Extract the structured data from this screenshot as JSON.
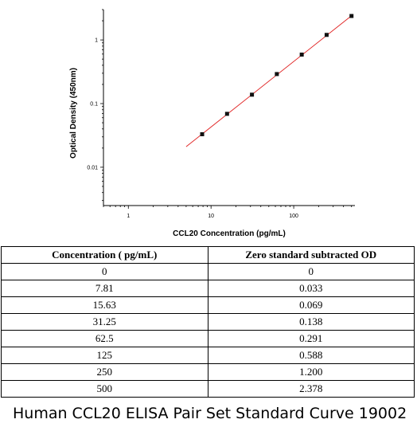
{
  "chart_data": {
    "type": "scatter",
    "xlabel": "CCL20 Concentration (pg/mL)",
    "ylabel": "Optical Density (450nm)",
    "xscale": "log",
    "yscale": "log",
    "xlim": [
      0.5,
      550
    ],
    "ylim": [
      0.0025,
      3
    ],
    "xticks": [
      {
        "value": 1,
        "label": "1"
      },
      {
        "value": 10,
        "label": "10"
      },
      {
        "value": 100,
        "label": "100"
      }
    ],
    "yticks": [
      {
        "value": 0.01,
        "label": "0.01"
      },
      {
        "value": 0.1,
        "label": "0.1"
      },
      {
        "value": 1,
        "label": "1"
      }
    ],
    "x": [
      7.81,
      15.63,
      31.25,
      62.5,
      125,
      250,
      500
    ],
    "y": [
      0.033,
      0.069,
      0.138,
      0.291,
      0.588,
      1.2,
      2.378
    ],
    "fit_line": {
      "x": [
        5,
        500
      ],
      "y": [
        0.021,
        2.4
      ],
      "color": "#e02020"
    },
    "marker_color": "#111111"
  },
  "table": {
    "headers": [
      "Concentration ( pg/mL)",
      "Zero standard subtracted OD"
    ],
    "rows": [
      [
        "0",
        "0"
      ],
      [
        "7.81",
        "0.033"
      ],
      [
        "15.63",
        "0.069"
      ],
      [
        "31.25",
        "0.138"
      ],
      [
        "62.5",
        "0.291"
      ],
      [
        "125",
        "0.588"
      ],
      [
        "250",
        "1.200"
      ],
      [
        "500",
        "2.378"
      ]
    ]
  },
  "caption": "Human CCL20 ELISA Pair Set Standard Curve 19002"
}
